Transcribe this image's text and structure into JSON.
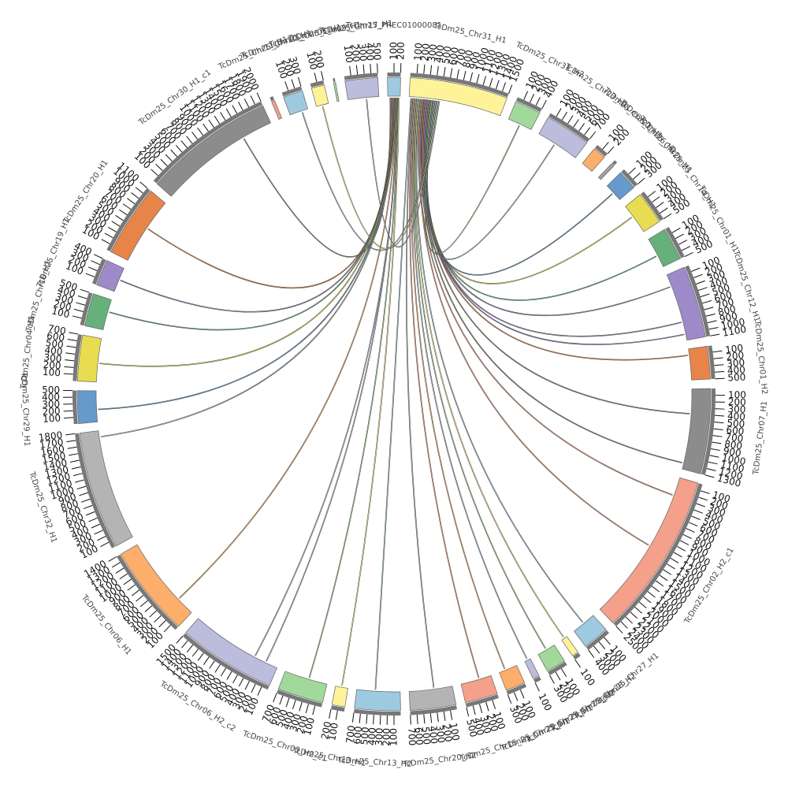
{
  "chart_data": {
    "type": "chord",
    "segments": [
      {
        "name": "TcDm25_PREC01000081",
        "length": 200,
        "color": "#9ecae1",
        "ticks": [
          100,
          200
        ]
      },
      {
        "name": "TcDm25_Chr31_H1",
        "length": 1500,
        "color": "#fff39a",
        "ticks": [
          100,
          200,
          300,
          400,
          500,
          600,
          700,
          800,
          900,
          1000,
          1100,
          1200,
          1300,
          1400,
          1500
        ]
      },
      {
        "name": "TcDm25_Chr31_H2",
        "length": 400,
        "color": "#a1d99b",
        "ticks": [
          100,
          200,
          300,
          400
        ]
      },
      {
        "name": "TcDm25_Chr23_H1",
        "length": 700,
        "color": "#bcbddc",
        "ticks": [
          100,
          200,
          300,
          400,
          500,
          600,
          700
        ]
      },
      {
        "name": "TcDm25_Chr21_H1",
        "length": 200,
        "color": "#fdae6b",
        "ticks": [
          100,
          200
        ]
      },
      {
        "name": "TcDm25_Chr26_H1",
        "length": 50,
        "color": "#a0a0a0",
        "ticks": []
      },
      {
        "name": "TcDm25_Chr25_H1",
        "length": 300,
        "color": "#6699cc",
        "ticks": [
          100,
          200,
          300
        ]
      },
      {
        "name": "TcDm25_Chr14_H1",
        "length": 500,
        "color": "#e8dc50",
        "ticks": [
          100,
          200,
          300,
          400,
          500
        ]
      },
      {
        "name": "TcDm25_Chr01_H1",
        "length": 500,
        "color": "#66b07c",
        "ticks": [
          100,
          200,
          300,
          400,
          500
        ]
      },
      {
        "name": "TcDm25_Chr12_H1",
        "length": 1100,
        "color": "#9e8ac8",
        "ticks": [
          100,
          200,
          300,
          400,
          500,
          600,
          700,
          800,
          900,
          1000,
          1100
        ]
      },
      {
        "name": "TcDm25_Chr01_H2",
        "length": 500,
        "color": "#e6844a",
        "ticks": [
          100,
          200,
          300,
          400,
          500
        ]
      },
      {
        "name": "TcDm25_Chr07_H1",
        "length": 1300,
        "color": "#8c8c8c",
        "ticks": [
          100,
          200,
          300,
          400,
          500,
          600,
          700,
          800,
          900,
          1000,
          1100,
          1200,
          1300
        ]
      },
      {
        "name": "TcDm25_Chr02_H2_c1",
        "length": 2500,
        "color": "#f4a08a",
        "ticks": [
          100,
          200,
          300,
          400,
          500,
          600,
          700,
          800,
          900,
          1000,
          1100,
          1200,
          1300,
          1400,
          1500,
          1600,
          1700,
          1800,
          1900,
          2000,
          2100,
          2200,
          2300,
          2400,
          2500
        ]
      },
      {
        "name": "TcDm25_Chr27_H1",
        "length": 400,
        "color": "#9ecae1",
        "ticks": [
          100,
          200,
          300,
          400
        ]
      },
      {
        "name": "TcDm25_Chr28_H2",
        "length": 100,
        "color": "#fff39a",
        "ticks": [
          100
        ]
      },
      {
        "name": "TcDm25_Chr08_H2",
        "length": 300,
        "color": "#a1d99b",
        "ticks": [
          100,
          200,
          300
        ]
      },
      {
        "name": "TcDm25_Chr24_H1",
        "length": 100,
        "color": "#bcbddc",
        "ticks": [
          100
        ]
      },
      {
        "name": "TcDm25_Chr22_H1",
        "length": 300,
        "color": "#fdae6b",
        "ticks": [
          100,
          200,
          300
        ]
      },
      {
        "name": "TcDm25_Chr15_H1",
        "length": 500,
        "color": "#f4a08a",
        "ticks": [
          100,
          200,
          300,
          400,
          500
        ]
      },
      {
        "name": "TcDm25_Chr20_H2",
        "length": 700,
        "color": "#b4b4b4",
        "ticks": [
          100,
          200,
          300,
          400,
          500,
          600,
          700
        ]
      },
      {
        "name": "TcDm25_Chr13_H2",
        "length": 700,
        "color": "#9ecae1",
        "ticks": [
          100,
          200,
          300,
          400,
          500,
          600,
          700
        ]
      },
      {
        "name": "TcDm25_Chr13_H1",
        "length": 200,
        "color": "#fff39a",
        "ticks": [
          100,
          200
        ]
      },
      {
        "name": "TcDm25_Chr03_H2_c1",
        "length": 700,
        "color": "#a1d99b",
        "ticks": [
          100,
          200,
          300,
          400,
          500,
          600,
          700
        ]
      },
      {
        "name": "TcDm25_Chr06_H2_c2",
        "length": 1500,
        "color": "#bcbddc",
        "ticks": [
          100,
          200,
          300,
          400,
          500,
          600,
          700,
          800,
          900,
          1000,
          1100,
          1200,
          1300,
          1400,
          1500
        ]
      },
      {
        "name": "TcDm25_Chr06_H1",
        "length": 1400,
        "color": "#fdae6b",
        "ticks": [
          100,
          200,
          300,
          400,
          500,
          600,
          700,
          800,
          900,
          1000,
          1100,
          1200,
          1300,
          1400
        ]
      },
      {
        "name": "TcDm25_Chr32_H1",
        "length": 1800,
        "color": "#b4b4b4",
        "ticks": [
          100,
          200,
          300,
          400,
          500,
          600,
          700,
          800,
          900,
          1000,
          1100,
          1200,
          1300,
          1400,
          1500,
          1600,
          1700,
          1800
        ]
      },
      {
        "name": "TcDm25_Chr29_H1",
        "length": 500,
        "color": "#6699cc",
        "ticks": [
          100,
          200,
          300,
          400,
          500
        ]
      },
      {
        "name": "TcDm25_Chr04_H1",
        "length": 700,
        "color": "#e8dc50",
        "ticks": [
          100,
          200,
          300,
          400,
          500,
          600,
          700
        ]
      },
      {
        "name": "TcDm25_Chr16_H1",
        "length": 500,
        "color": "#66b07c",
        "ticks": [
          100,
          200,
          300,
          400,
          500
        ]
      },
      {
        "name": "TcDm25_Chr19_H1",
        "length": 400,
        "color": "#9e8ac8",
        "ticks": [
          100,
          200,
          300,
          400
        ]
      },
      {
        "name": "TcDm25_Chr20_H1",
        "length": 1100,
        "color": "#e6844a",
        "ticks": [
          100,
          200,
          300,
          400,
          500,
          600,
          700,
          800,
          900,
          1000,
          1100
        ]
      },
      {
        "name": "TcDm25_Chr30_H1_c1",
        "length": 2000,
        "color": "#8c8c8c",
        "ticks": [
          100,
          200,
          300,
          400,
          500,
          600,
          700,
          800,
          900,
          1000,
          1100,
          1200,
          1300,
          1400,
          1500,
          1600,
          1700,
          1800,
          1900,
          2000
        ]
      },
      {
        "name": "TcDm25_Chr11_H1",
        "length": 50,
        "color": "#f4a08a",
        "ticks": []
      },
      {
        "name": "TcDm25_Chr10_H1",
        "length": 300,
        "color": "#9ecae1",
        "ticks": [
          100,
          200,
          300
        ]
      },
      {
        "name": "TcDm25_Chr05_H1",
        "length": 200,
        "color": "#fff39a",
        "ticks": [
          100,
          200
        ]
      },
      {
        "name": "TcDm25_Chr09_H1",
        "length": 30,
        "color": "#a1d99b",
        "ticks": []
      },
      {
        "name": "TcDm25_Chr17_H1",
        "length": 500,
        "color": "#bcbddc",
        "ticks": [
          100,
          200,
          300,
          400,
          500
        ]
      }
    ],
    "links": [
      {
        "source": "TcDm25_PREC01000081",
        "source_pos": 40,
        "target": "TcDm25_Chr30_H1_c1",
        "target_pos": 1500
      },
      {
        "source": "TcDm25_PREC01000081",
        "source_pos": 60,
        "target": "TcDm25_Chr20_H1",
        "target_pos": 600
      },
      {
        "source": "TcDm25_PREC01000081",
        "source_pos": 80,
        "target": "TcDm25_Chr19_H1",
        "target_pos": 200
      },
      {
        "source": "TcDm25_PREC01000081",
        "source_pos": 100,
        "target": "TcDm25_Chr16_H1",
        "target_pos": 300
      },
      {
        "source": "TcDm25_PREC01000081",
        "source_pos": 110,
        "target": "TcDm25_Chr04_H1",
        "target_pos": 300
      },
      {
        "source": "TcDm25_PREC01000081",
        "source_pos": 120,
        "target": "TcDm25_Chr29_H1",
        "target_pos": 200
      },
      {
        "source": "TcDm25_PREC01000081",
        "source_pos": 130,
        "target": "TcDm25_Chr32_H1",
        "target_pos": 1700
      },
      {
        "source": "TcDm25_PREC01000081",
        "source_pos": 140,
        "target": "TcDm25_Chr06_H1",
        "target_pos": 300
      },
      {
        "source": "TcDm25_PREC01000081",
        "source_pos": 150,
        "target": "TcDm25_Chr06_H2_c2",
        "target_pos": 200
      },
      {
        "source": "TcDm25_PREC01000081",
        "source_pos": 160,
        "target": "TcDm25_Chr06_H2_c2",
        "target_pos": 400
      },
      {
        "source": "TcDm25_PREC01000081",
        "source_pos": 170,
        "target": "TcDm25_Chr03_H2_c1",
        "target_pos": 300
      },
      {
        "source": "TcDm25_PREC01000081",
        "source_pos": 180,
        "target": "TcDm25_Chr13_H1",
        "target_pos": 100
      },
      {
        "source": "TcDm25_Chr31_H1",
        "source_pos": 30,
        "target": "TcDm25_Chr13_H2",
        "target_pos": 400
      },
      {
        "source": "TcDm25_Chr31_H1",
        "source_pos": 50,
        "target": "TcDm25_Chr20_H2",
        "target_pos": 300
      },
      {
        "source": "TcDm25_Chr31_H1",
        "source_pos": 70,
        "target": "TcDm25_Chr15_H1",
        "target_pos": 200
      },
      {
        "source": "TcDm25_Chr31_H1",
        "source_pos": 90,
        "target": "TcDm25_Chr22_H1",
        "target_pos": 200
      },
      {
        "source": "TcDm25_Chr31_H1",
        "source_pos": 110,
        "target": "TcDm25_Chr24_H1",
        "target_pos": 50
      },
      {
        "source": "TcDm25_Chr31_H1",
        "source_pos": 130,
        "target": "TcDm25_Chr08_H2",
        "target_pos": 150
      },
      {
        "source": "TcDm25_Chr31_H1",
        "source_pos": 150,
        "target": "TcDm25_Chr28_H2",
        "target_pos": 50
      },
      {
        "source": "TcDm25_Chr31_H1",
        "source_pos": 170,
        "target": "TcDm25_Chr27_H1",
        "target_pos": 200
      },
      {
        "source": "TcDm25_Chr31_H1",
        "source_pos": 190,
        "target": "TcDm25_Chr02_H2_c1",
        "target_pos": 300
      },
      {
        "source": "TcDm25_Chr31_H1",
        "source_pos": 210,
        "target": "TcDm25_Chr02_H2_c1",
        "target_pos": 1200
      },
      {
        "source": "TcDm25_Chr31_H1",
        "source_pos": 230,
        "target": "TcDm25_Chr07_H1",
        "target_pos": 1200
      },
      {
        "source": "TcDm25_Chr31_H1",
        "source_pos": 250,
        "target": "TcDm25_Chr07_H1",
        "target_pos": 400
      },
      {
        "source": "TcDm25_Chr31_H1",
        "source_pos": 270,
        "target": "TcDm25_Chr01_H2",
        "target_pos": 100
      },
      {
        "source": "TcDm25_Chr31_H1",
        "source_pos": 290,
        "target": "TcDm25_Chr12_H1",
        "target_pos": 1000
      },
      {
        "source": "TcDm25_Chr31_H1",
        "source_pos": 310,
        "target": "TcDm25_Chr12_H1",
        "target_pos": 800
      },
      {
        "source": "TcDm25_Chr31_H1",
        "source_pos": 330,
        "target": "TcDm25_Chr12_H1",
        "target_pos": 200
      },
      {
        "source": "TcDm25_Chr31_H1",
        "source_pos": 350,
        "target": "TcDm25_Chr01_H1",
        "target_pos": 300
      },
      {
        "source": "TcDm25_Chr31_H1",
        "source_pos": 370,
        "target": "TcDm25_Chr14_H1",
        "target_pos": 200
      },
      {
        "source": "TcDm25_Chr31_H1",
        "source_pos": 390,
        "target": "TcDm25_Chr25_H1",
        "target_pos": 150
      },
      {
        "source": "TcDm25_Chr31_H1",
        "source_pos": 410,
        "target": "TcDm25_Chr23_H1",
        "target_pos": 300
      },
      {
        "source": "TcDm25_Chr31_H1",
        "source_pos": 430,
        "target": "TcDm25_Chr31_H2",
        "target_pos": 200
      },
      {
        "source": "TcDm25_Chr31_H1",
        "source_pos": 450,
        "target": "TcDm25_Chr10_H1",
        "target_pos": 200
      },
      {
        "source": "TcDm25_Chr31_H1",
        "source_pos": 470,
        "target": "TcDm25_Chr05_H1",
        "target_pos": 100
      },
      {
        "source": "TcDm25_Chr31_H1",
        "source_pos": 490,
        "target": "TcDm25_Chr17_H1",
        "target_pos": 300
      }
    ]
  }
}
